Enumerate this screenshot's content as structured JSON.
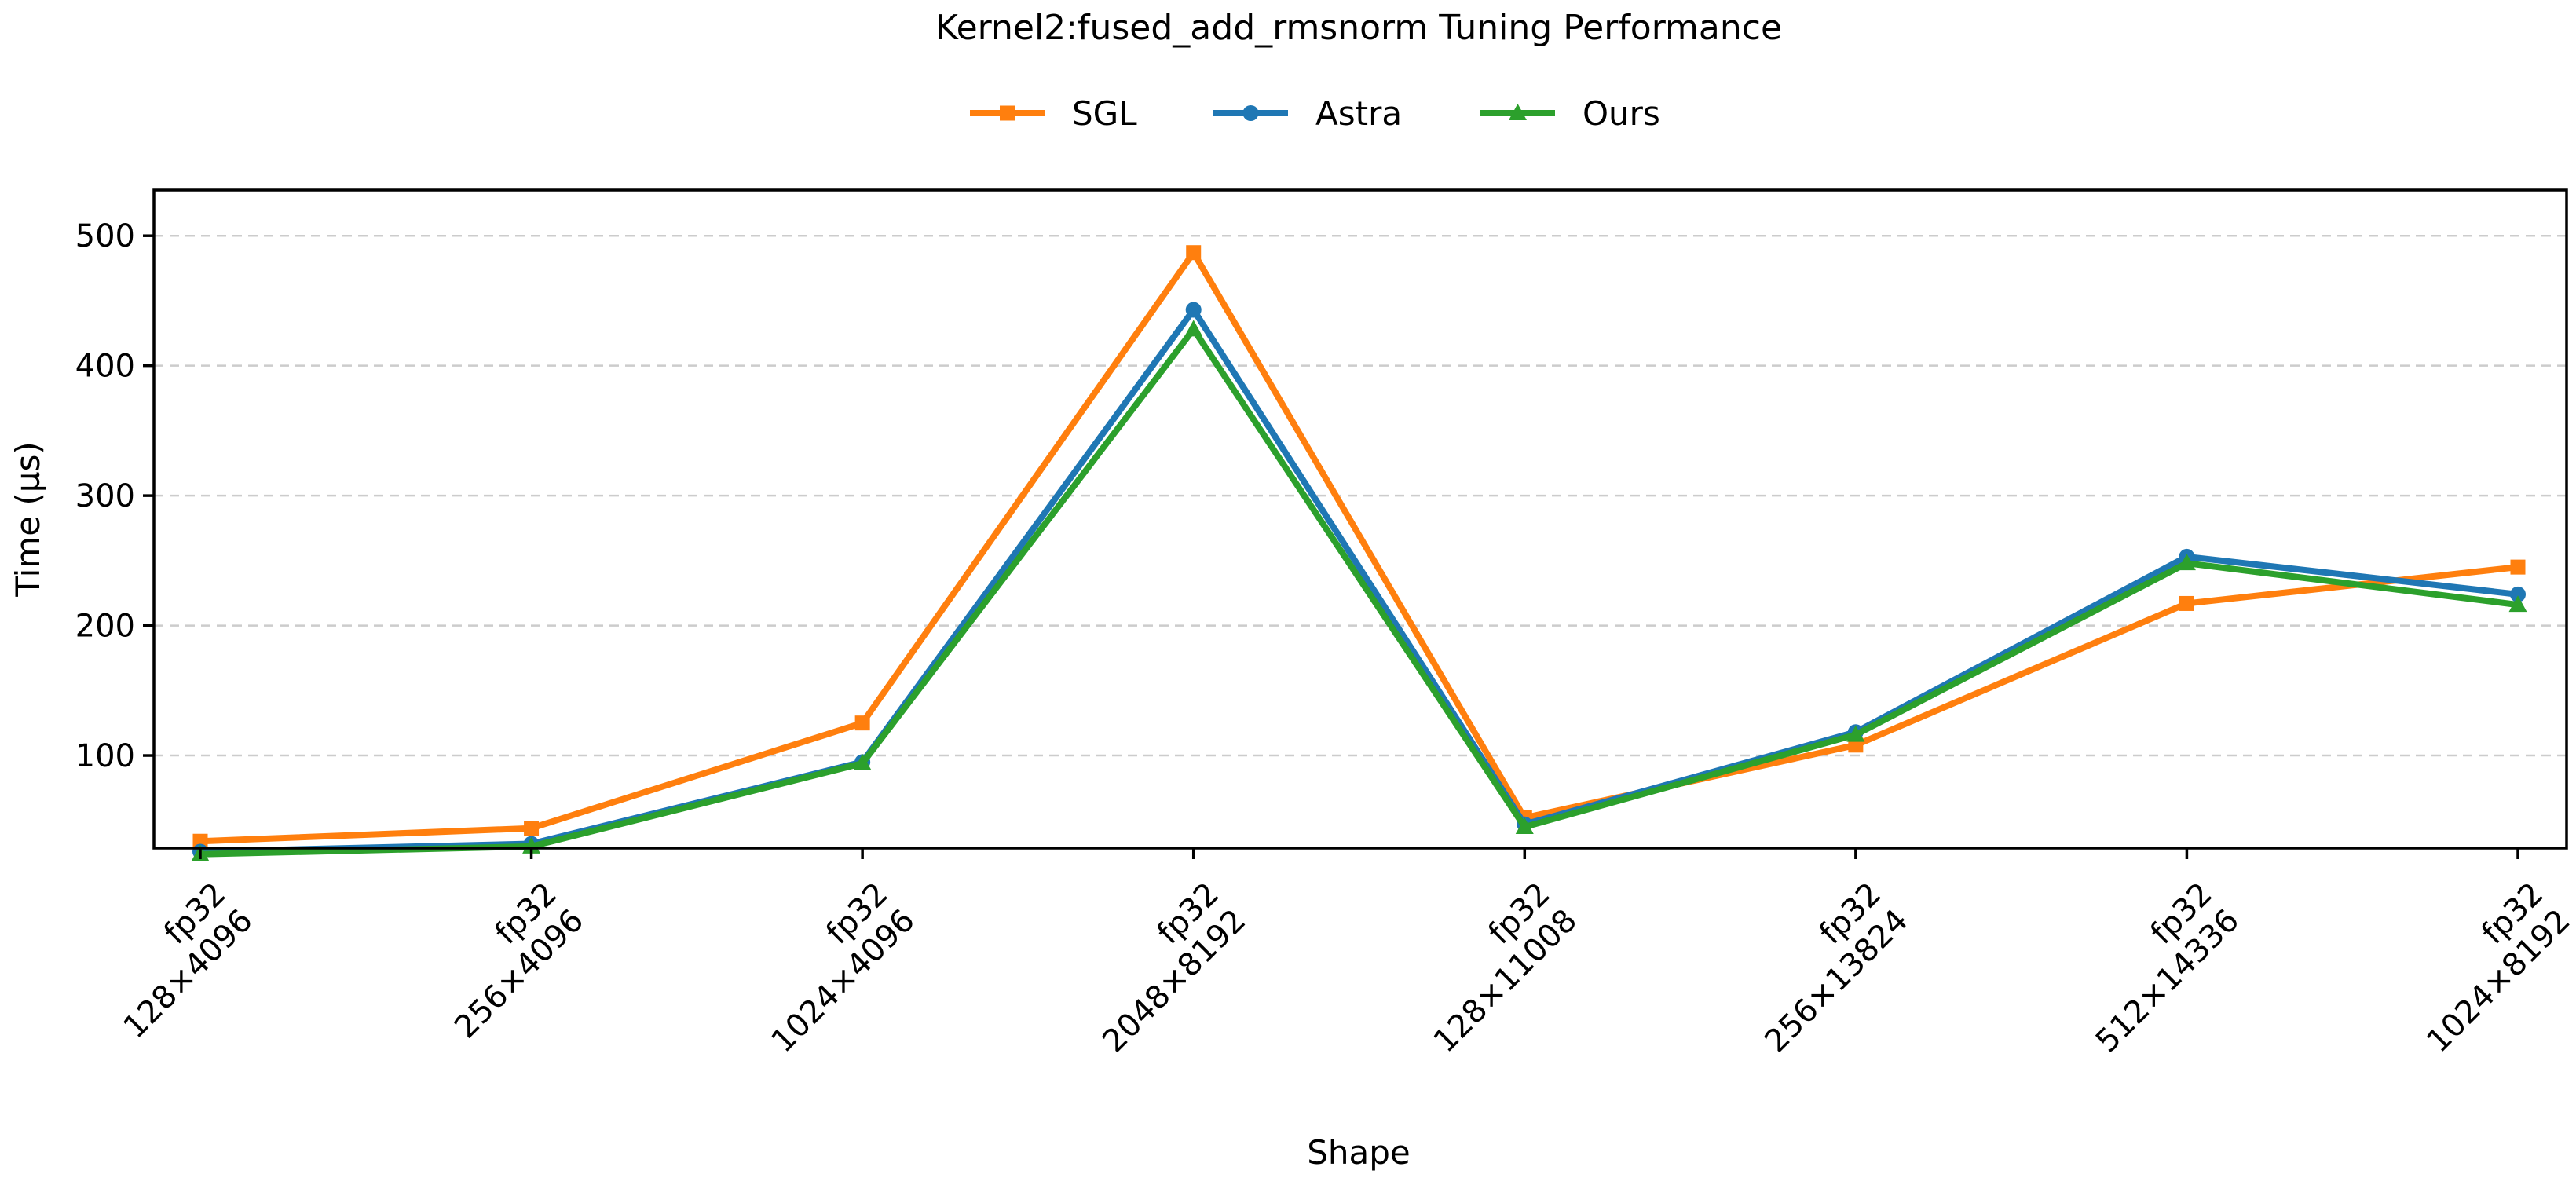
{
  "chart_data": {
    "type": "line",
    "title": "Kernel2:fused_add_rmsnorm Tuning Performance",
    "xlabel": "Shape",
    "ylabel": "Time (µs)",
    "categories": [
      [
        "fp32",
        "128×4096"
      ],
      [
        "fp32",
        "256×4096"
      ],
      [
        "fp32",
        "1024×4096"
      ],
      [
        "fp32",
        "2048×8192"
      ],
      [
        "fp32",
        "128×11008"
      ],
      [
        "fp32",
        "256×13824"
      ],
      [
        "fp32",
        "512×14336"
      ],
      [
        "fp32",
        "1024×8192"
      ]
    ],
    "yticks": [
      100,
      200,
      300,
      400,
      500
    ],
    "ylim": [
      0,
      510
    ],
    "grid": "horizontal dashed",
    "legend_position": "top-center",
    "series": [
      {
        "name": "SGL",
        "color": "#ff7f0e",
        "marker": "square",
        "values": [
          34,
          44,
          125,
          487,
          52,
          108,
          217,
          245
        ]
      },
      {
        "name": "Astra",
        "color": "#1f77b4",
        "marker": "circle",
        "values": [
          26,
          32,
          95,
          443,
          47,
          118,
          253,
          224
        ]
      },
      {
        "name": "Ours",
        "color": "#2ca02c",
        "marker": "triangle",
        "values": [
          24,
          30,
          94,
          428,
          45,
          116,
          248,
          216
        ]
      }
    ]
  }
}
